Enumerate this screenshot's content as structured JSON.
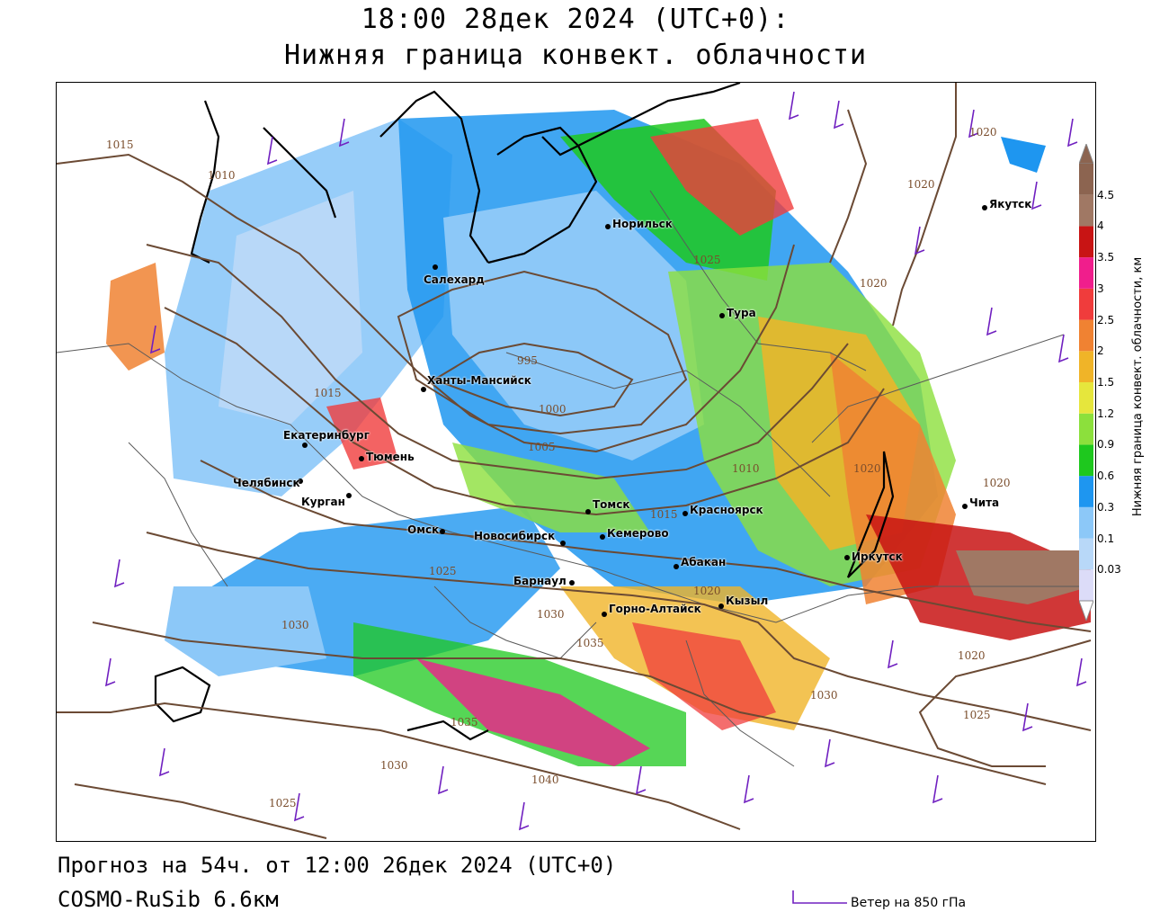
{
  "header": {
    "title_line1": "18:00 28дек 2024 (UTC+0):",
    "title_line2": "Нижняя граница конвект. облачности"
  },
  "footer": {
    "forecast": "Прогноз на 54ч. от 12:00 26дек 2024 (UTC+0)",
    "model": "COSMO-RuSib 6.6км",
    "wind_legend": "Ветер на 850 гПа"
  },
  "colorbar": {
    "title": "Нижняя граница конвект. облачности, км",
    "levels": [
      "0.03",
      "0.1",
      "0.3",
      "0.6",
      "0.9",
      "1.2",
      "1.5",
      "2",
      "2.5",
      "3",
      "3.5",
      "4",
      "4.5"
    ],
    "colors": [
      "#dcdcf8",
      "#b8d8f8",
      "#8cc8f8",
      "#1e96f0",
      "#1ec81e",
      "#8ce03c",
      "#e6e63c",
      "#f0b428",
      "#f08232",
      "#f03c3c",
      "#f01e8c",
      "#c81414",
      "#a07864",
      "#8c6450"
    ]
  },
  "cities": [
    {
      "name": "Якутск"
    },
    {
      "name": "Норильск"
    },
    {
      "name": "Салехард"
    },
    {
      "name": "Тура"
    },
    {
      "name": "Ханты-Мансийск"
    },
    {
      "name": "Екатеринбург"
    },
    {
      "name": "Тюмень"
    },
    {
      "name": "Челябинск"
    },
    {
      "name": "Курган"
    },
    {
      "name": "Омск"
    },
    {
      "name": "Новосибирск"
    },
    {
      "name": "Томск"
    },
    {
      "name": "Кемерово"
    },
    {
      "name": "Красноярск"
    },
    {
      "name": "Барнаул"
    },
    {
      "name": "Абакан"
    },
    {
      "name": "Горно-Алтайск"
    },
    {
      "name": "Кызыл"
    },
    {
      "name": "Иркутск"
    },
    {
      "name": "Чита"
    }
  ],
  "isobars": [
    "1015",
    "1010",
    "1020",
    "1020",
    "1020",
    "1020",
    "1015",
    "995",
    "1000",
    "1005",
    "1010",
    "1015",
    "1020",
    "1025",
    "1030",
    "1035",
    "1030",
    "1040",
    "1025",
    "1030",
    "1025",
    "1035",
    "1020",
    "1025",
    "1030",
    "1020"
  ]
}
